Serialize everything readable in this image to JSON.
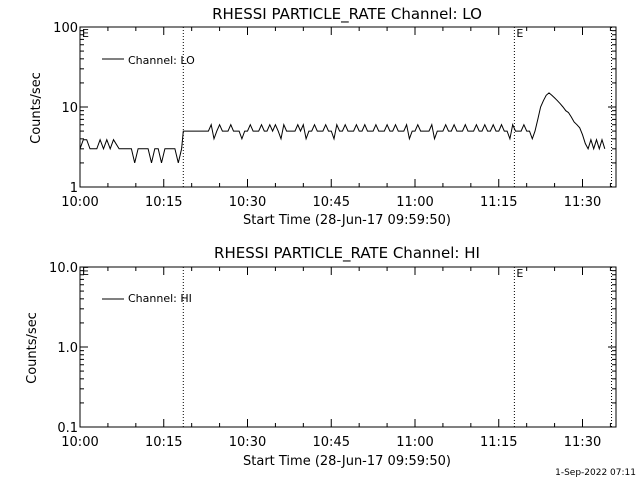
{
  "chart_data": [
    {
      "type": "line",
      "title": "RHESSI PARTICLE_RATE Channel: LO",
      "xlabel": "Start Time (28-Jun-17 09:59:50)",
      "ylabel": "Counts/sec",
      "y_scale": "log",
      "ylim": [
        1,
        100
      ],
      "y_ticks": [
        {
          "value": 1,
          "label": "1"
        },
        {
          "value": 10,
          "label": "10"
        },
        {
          "value": 100,
          "label": "100"
        }
      ],
      "xlim_minutes": [
        0,
        96
      ],
      "x_ticks": [
        {
          "value": 0,
          "label": "10:00"
        },
        {
          "value": 15,
          "label": "10:15"
        },
        {
          "value": 30,
          "label": "10:30"
        },
        {
          "value": 45,
          "label": "10:45"
        },
        {
          "value": 60,
          "label": "11:00"
        },
        {
          "value": 75,
          "label": "11:15"
        },
        {
          "value": 90,
          "label": "11:30"
        }
      ],
      "legend": {
        "label": "Channel: LO",
        "placement": "top-left"
      },
      "event_lines": [
        {
          "minute": 18.5,
          "label": ""
        },
        {
          "minute": 77.8,
          "label": "E"
        },
        {
          "minute": 95.2,
          "label": ""
        }
      ],
      "edge_labels": {
        "left": "E"
      },
      "series": [
        {
          "name": "Channel: LO",
          "x": [
            0,
            0.6,
            1.2,
            1.8,
            2.4,
            3.0,
            3.6,
            4.2,
            4.8,
            5.4,
            6.0,
            7.0,
            8.0,
            8.6,
            9.2,
            9.8,
            10.4,
            11.0,
            11.6,
            12.2,
            12.8,
            13.4,
            14.0,
            14.6,
            15.2,
            15.8,
            16.4,
            17.0,
            17.6,
            18.2,
            18.5,
            19.5,
            21.0,
            22.0,
            23.0,
            23.5,
            24.0,
            24.5,
            25.0,
            25.5,
            26.0,
            26.5,
            27.0,
            27.5,
            28.0,
            28.5,
            29.0,
            29.5,
            30.0,
            30.5,
            31.0,
            31.5,
            32.0,
            32.5,
            33.0,
            33.5,
            34.0,
            34.5,
            35.0,
            35.5,
            36.0,
            36.5,
            37.0,
            37.5,
            38.0,
            38.5,
            39.0,
            39.5,
            40.0,
            40.5,
            41.0,
            41.5,
            42.0,
            42.5,
            43.0,
            43.5,
            44.0,
            44.5,
            45.0,
            45.5,
            46.0,
            46.5,
            47.0,
            47.5,
            48.0,
            48.5,
            49.0,
            49.5,
            50.0,
            50.5,
            51.0,
            51.5,
            52.0,
            52.5,
            53.0,
            53.5,
            54.0,
            54.5,
            55.0,
            55.5,
            56.0,
            56.5,
            57.0,
            57.5,
            58.0,
            58.5,
            59.0,
            59.5,
            60.0,
            60.5,
            61.0,
            61.5,
            62.0,
            62.5,
            63.0,
            63.5,
            64.0,
            64.5,
            65.0,
            65.5,
            66.0,
            66.5,
            67.0,
            67.5,
            68.0,
            68.5,
            69.0,
            69.5,
            70.0,
            70.5,
            71.0,
            71.5,
            72.0,
            72.5,
            73.0,
            73.5,
            74.0,
            74.5,
            75.0,
            75.5,
            76.0,
            76.5,
            77.0,
            77.5,
            78.0,
            78.5,
            79.0,
            79.5,
            80.0,
            80.5,
            81.0,
            81.5,
            82.0,
            82.5,
            83.0,
            83.5,
            84.0,
            84.5,
            85.0,
            85.5,
            86.0,
            86.5,
            87.0,
            87.5,
            88.0,
            88.5,
            89.0,
            89.5,
            90.0,
            90.5,
            91.0,
            91.5,
            92.0,
            92.5,
            93.0,
            93.5,
            94.0
          ],
          "y": [
            3,
            3.9,
            3.9,
            3,
            3,
            3,
            3.9,
            3,
            3.9,
            3,
            3.9,
            3,
            3,
            3,
            3,
            2,
            3,
            3,
            3,
            3,
            2,
            3,
            3,
            2,
            3,
            3,
            3,
            3,
            2,
            3,
            5,
            5,
            5,
            5,
            5,
            6,
            4,
            5,
            6,
            5,
            5,
            5,
            6,
            5,
            5,
            5,
            4,
            5,
            5,
            6,
            5,
            5,
            5,
            6,
            5,
            5,
            6,
            5,
            6,
            5,
            4,
            6,
            5,
            5,
            5,
            5,
            6,
            5,
            6,
            4,
            5,
            5,
            6,
            5,
            5,
            5,
            6,
            5,
            5,
            4,
            6,
            5,
            5,
            6,
            5,
            5,
            5,
            6,
            5,
            5,
            6,
            5,
            5,
            5,
            6,
            5,
            5,
            5,
            6,
            5,
            5,
            6,
            5,
            5,
            5,
            6,
            4,
            5,
            5,
            6,
            5,
            5,
            5,
            5,
            6,
            4,
            5,
            5,
            5,
            6,
            5,
            5,
            6,
            5,
            5,
            5,
            6,
            5,
            5,
            5,
            6,
            5,
            5,
            6,
            5,
            5,
            6,
            5,
            5,
            6,
            5,
            5,
            4,
            6,
            5,
            5,
            5,
            6,
            5,
            5,
            4,
            5,
            7,
            10,
            12,
            14,
            15,
            14,
            13,
            12,
            11,
            10,
            9,
            8.5,
            7.5,
            6.5,
            6,
            5.5,
            4.5,
            3.5,
            3,
            3.9,
            3,
            3.9,
            3,
            3.9,
            3
          ]
        }
      ]
    },
    {
      "type": "line",
      "title": "RHESSI PARTICLE_RATE Channel: HI",
      "xlabel": "Start Time (28-Jun-17 09:59:50)",
      "ylabel": "Counts/sec",
      "y_scale": "log",
      "ylim": [
        0.1,
        10
      ],
      "y_ticks": [
        {
          "value": 0.1,
          "label": "0.1"
        },
        {
          "value": 1,
          "label": "1.0"
        },
        {
          "value": 10,
          "label": "10.0"
        }
      ],
      "xlim_minutes": [
        0,
        96
      ],
      "x_ticks": [
        {
          "value": 0,
          "label": "10:00"
        },
        {
          "value": 15,
          "label": "10:15"
        },
        {
          "value": 30,
          "label": "10:30"
        },
        {
          "value": 45,
          "label": "10:45"
        },
        {
          "value": 60,
          "label": "11:00"
        },
        {
          "value": 75,
          "label": "11:15"
        },
        {
          "value": 90,
          "label": "11:30"
        }
      ],
      "legend": {
        "label": "Channel: HI",
        "placement": "top-left"
      },
      "event_lines": [
        {
          "minute": 18.5,
          "label": ""
        },
        {
          "minute": 77.8,
          "label": "E"
        },
        {
          "minute": 95.2,
          "label": ""
        }
      ],
      "edge_labels": {
        "left": "E"
      },
      "series": [
        {
          "name": "Channel: HI",
          "x": [],
          "y": []
        }
      ]
    }
  ],
  "footer": {
    "date_stamp": "1-Sep-2022 07:11"
  }
}
